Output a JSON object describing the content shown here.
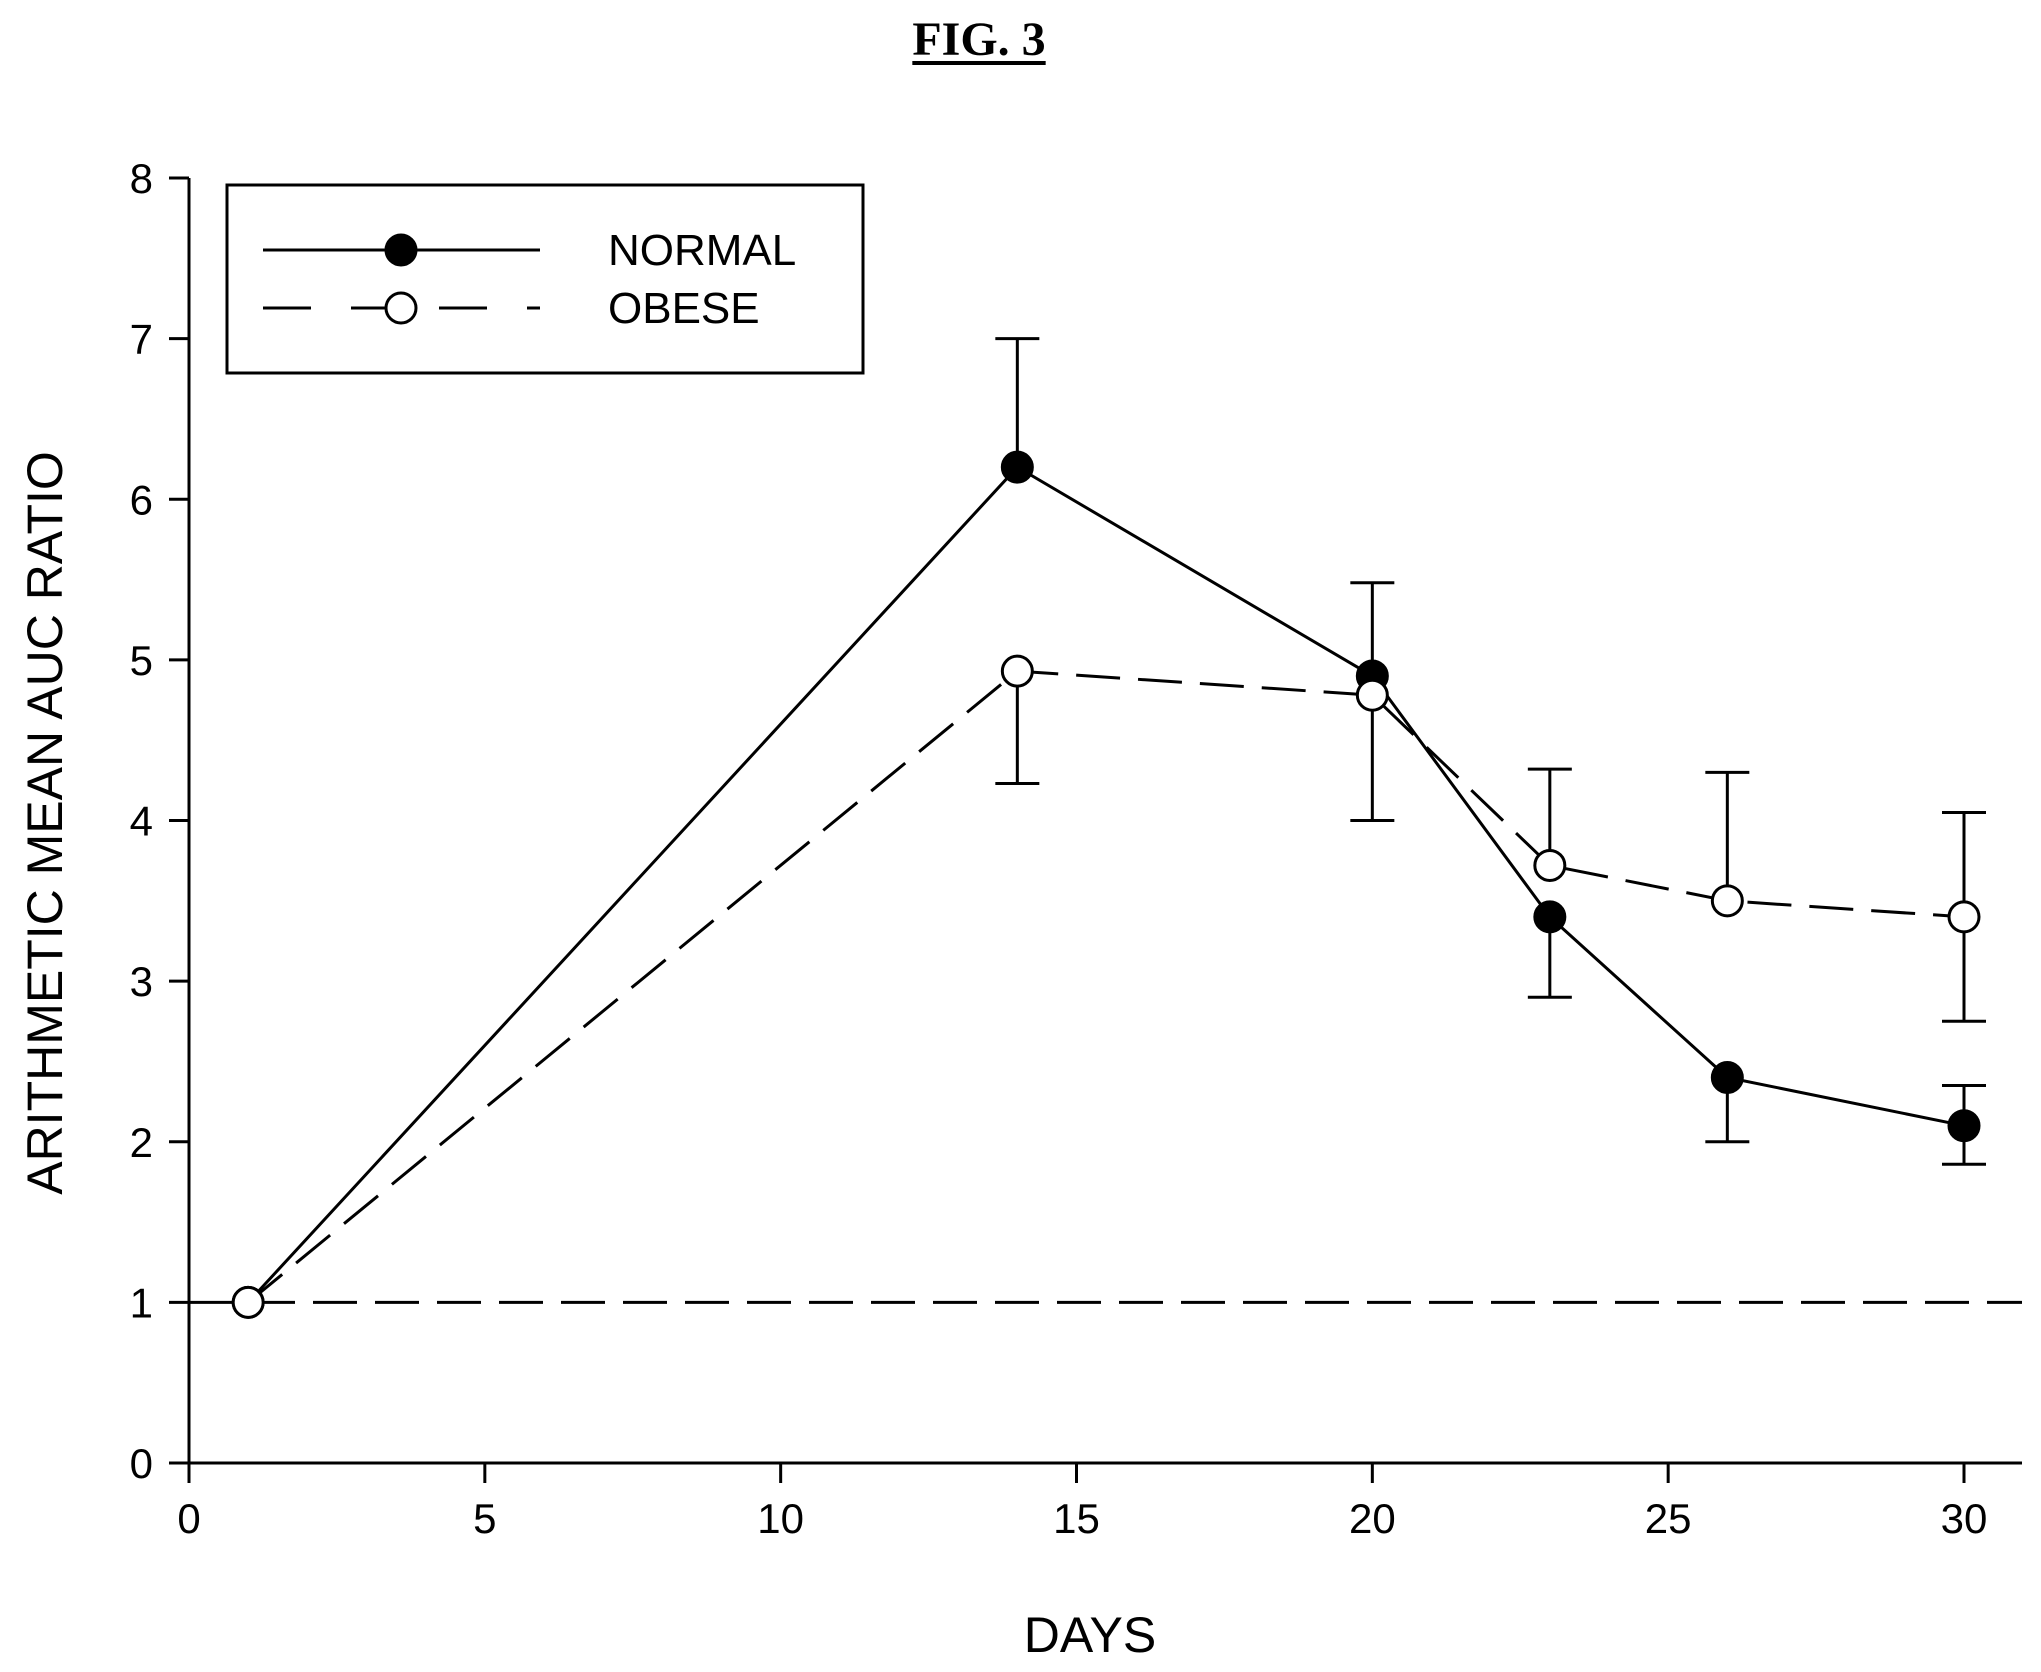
{
  "figure": {
    "label": "FIG. 3"
  },
  "chart_data": {
    "type": "line",
    "xlabel": "DAYS",
    "ylabel": "ARITHMETIC MEAN AUC RATIO",
    "xlim": [
      0,
      31
    ],
    "ylim": [
      0,
      8
    ],
    "xticks": [
      0,
      5,
      10,
      15,
      20,
      25,
      30
    ],
    "yticks": [
      0,
      1,
      2,
      3,
      4,
      5,
      6,
      7,
      8
    ],
    "legend_position": "top-left",
    "reference_line": {
      "y": 1,
      "style": "dashed"
    },
    "series": [
      {
        "name": "NORMAL",
        "marker": "filled-circle",
        "line_style": "solid",
        "x": [
          1,
          14,
          20,
          23,
          26,
          30
        ],
        "y": [
          1.0,
          6.2,
          4.9,
          3.4,
          2.4,
          2.1
        ],
        "error_upper": [
          null,
          7.0,
          5.48,
          null,
          null,
          2.35
        ],
        "error_lower": [
          null,
          null,
          null,
          2.9,
          2.0,
          1.86
        ]
      },
      {
        "name": "OBESE",
        "marker": "open-circle",
        "line_style": "dashed",
        "x": [
          1,
          14,
          20,
          23,
          26,
          30
        ],
        "y": [
          1.0,
          4.93,
          4.78,
          3.72,
          3.5,
          3.4
        ],
        "error_upper": [
          null,
          null,
          null,
          4.32,
          4.3,
          4.05
        ],
        "error_lower": [
          null,
          4.23,
          4.0,
          null,
          null,
          2.75
        ]
      }
    ]
  }
}
